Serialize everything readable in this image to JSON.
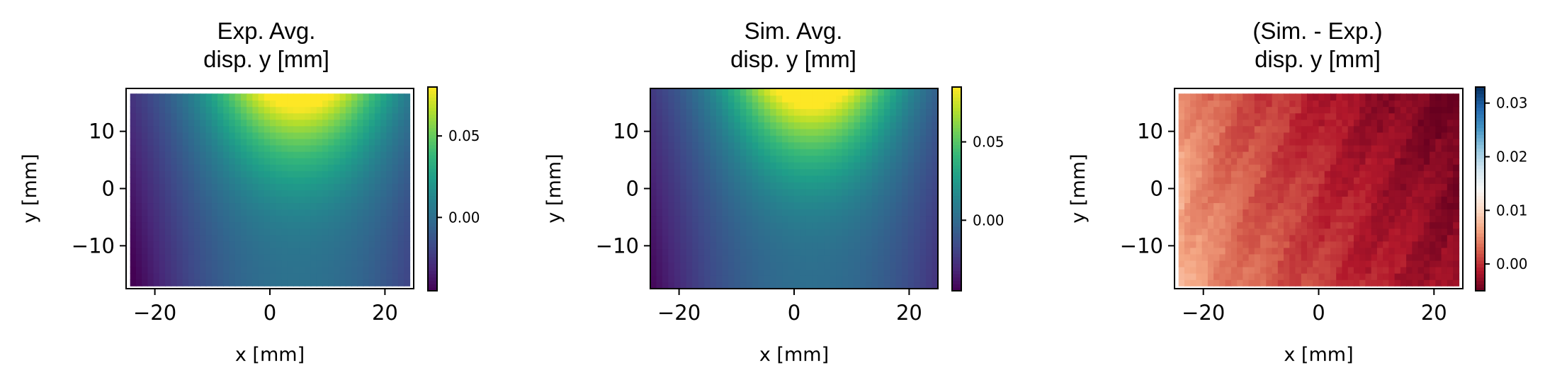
{
  "chart_data": [
    {
      "type": "heatmap",
      "title_lines": [
        "Exp. Avg.",
        "disp. y [mm]"
      ],
      "xlabel": "x [mm]",
      "ylabel": "y [mm]",
      "xlim": [
        -25,
        25
      ],
      "ylim": [
        -17.5,
        17.5
      ],
      "xticks": [
        -20,
        0,
        20
      ],
      "yticks": [
        -10,
        0,
        10
      ],
      "xtick_labels": [
        "−20",
        "0",
        "20"
      ],
      "ytick_labels": [
        "−10",
        "0",
        "10"
      ],
      "data_extent": {
        "x": [
          -24.3,
          24.3
        ],
        "y": [
          -17.0,
          16.6
        ]
      },
      "colormap": "viridis",
      "colorbar": {
        "min": -0.045,
        "max": 0.08,
        "ticks": [
          0.0,
          0.05
        ],
        "tick_labels": [
          "0.00",
          "0.05"
        ]
      },
      "field": {
        "description_model": "peak at top center",
        "peak_x": 5,
        "peak_value": 0.08,
        "bottom_value": 0.0,
        "corner_value": -0.045
      }
    },
    {
      "type": "heatmap",
      "title_lines": [
        "Sim. Avg.",
        "disp. y [mm]"
      ],
      "xlabel": "x [mm]",
      "ylabel": "y [mm]",
      "xlim": [
        -25,
        25
      ],
      "ylim": [
        -17.5,
        17.5
      ],
      "xticks": [
        -20,
        0,
        20
      ],
      "yticks": [
        -10,
        0,
        10
      ],
      "xtick_labels": [
        "−20",
        "0",
        "20"
      ],
      "ytick_labels": [
        "−10",
        "0",
        "10"
      ],
      "data_extent": {
        "x": [
          -25,
          25
        ],
        "y": [
          -17.5,
          17.5
        ]
      },
      "colormap": "viridis",
      "colorbar": {
        "min": -0.045,
        "max": 0.085,
        "ticks": [
          0.0,
          0.05
        ],
        "tick_labels": [
          "0.00",
          "0.05"
        ]
      },
      "field": {
        "peak_x": 3,
        "peak_value": 0.085,
        "bottom_value": 0.0,
        "corner_value": -0.045
      }
    },
    {
      "type": "heatmap",
      "title_lines": [
        "(Sim. - Exp.)",
        "disp. y [mm]"
      ],
      "xlabel": "x [mm]",
      "ylabel": "y [mm]",
      "xlim": [
        -25,
        25
      ],
      "ylim": [
        -17.5,
        17.5
      ],
      "xticks": [
        -20,
        0,
        20
      ],
      "yticks": [
        -10,
        0,
        10
      ],
      "xtick_labels": [
        "−20",
        "0",
        "20"
      ],
      "ytick_labels": [
        "−10",
        "0",
        "10"
      ],
      "data_extent": {
        "x": [
          -24.3,
          24.3
        ],
        "y": [
          -17.0,
          16.6
        ]
      },
      "colormap": "RdBu",
      "colorbar": {
        "min": -0.005,
        "max": 0.033,
        "ticks": [
          0.0,
          0.01,
          0.02,
          0.03
        ],
        "tick_labels": [
          "0.00",
          "0.01",
          "0.02",
          "0.03"
        ]
      },
      "field": {
        "left_value": 0.009,
        "right_value": -0.003
      }
    }
  ]
}
